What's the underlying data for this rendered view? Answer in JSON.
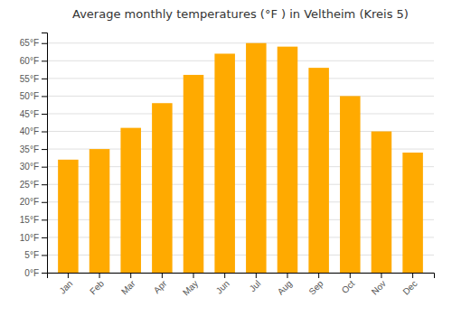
{
  "chart_data": {
    "type": "bar",
    "title": "Average monthly temperatures (°F ) in Veltheim (Kreis 5)",
    "categories": [
      "Jan",
      "Feb",
      "Mar",
      "Apr",
      "May",
      "Jun",
      "Jul",
      "Aug",
      "Sep",
      "Oct",
      "Nov",
      "Dec"
    ],
    "values": [
      32,
      35,
      41,
      48,
      56,
      62,
      65,
      64,
      58,
      50,
      40,
      34
    ],
    "color": "#FFAA00",
    "ylim": [
      0,
      68
    ],
    "yticks": [
      {
        "value": 0,
        "label": "0°F"
      },
      {
        "value": 5,
        "label": "5°F"
      },
      {
        "value": 10,
        "label": "10°F"
      },
      {
        "value": 15,
        "label": "15°F"
      },
      {
        "value": 20,
        "label": "20°F"
      },
      {
        "value": 25,
        "label": "25°F"
      },
      {
        "value": 30,
        "label": "30°F"
      },
      {
        "value": 35,
        "label": "35°F"
      },
      {
        "value": 40,
        "label": "40°F"
      },
      {
        "value": 45,
        "label": "45°F"
      },
      {
        "value": 50,
        "label": "50°F"
      },
      {
        "value": 55,
        "label": "55°F"
      },
      {
        "value": 60,
        "label": "60°F"
      },
      {
        "value": 65,
        "label": "65°F"
      }
    ],
    "grid": true
  }
}
